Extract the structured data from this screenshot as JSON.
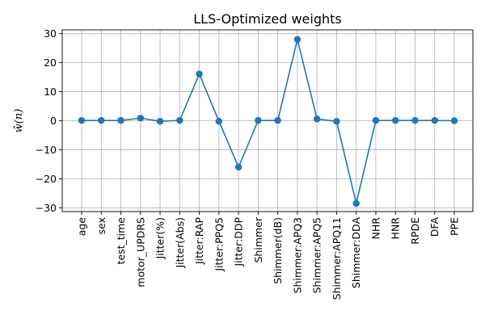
{
  "chart_data": {
    "type": "line",
    "title": "LLS-Optimized weights",
    "xlabel": "",
    "ylabel": "ŵ(n)",
    "categories": [
      "age",
      "sex",
      "test_time",
      "motor_UPDRS",
      "Jitter(%)",
      "Jitter(Abs)",
      "Jitter:RAP",
      "Jitter:PPQ5",
      "Jitter:DDP",
      "Shimmer",
      "Shimmer(dB)",
      "Shimmer:APQ3",
      "Shimmer:APQ5",
      "Shimmer:APQ11",
      "Shimmer:DDA",
      "NHR",
      "HNR",
      "RPDE",
      "DFA",
      "PPE"
    ],
    "values": [
      0.1,
      0.1,
      0.1,
      0.9,
      -0.2,
      0.1,
      16.1,
      -0.2,
      -16.0,
      0.1,
      0.1,
      28.0,
      0.6,
      -0.2,
      -28.5,
      0.1,
      0.1,
      0.1,
      0.1,
      0.0
    ],
    "yticks": [
      30,
      20,
      10,
      0,
      -10,
      -20,
      -30
    ],
    "ylim": [
      -31.3,
      31.3
    ],
    "grid": true,
    "line_color": "#1f77b4"
  }
}
